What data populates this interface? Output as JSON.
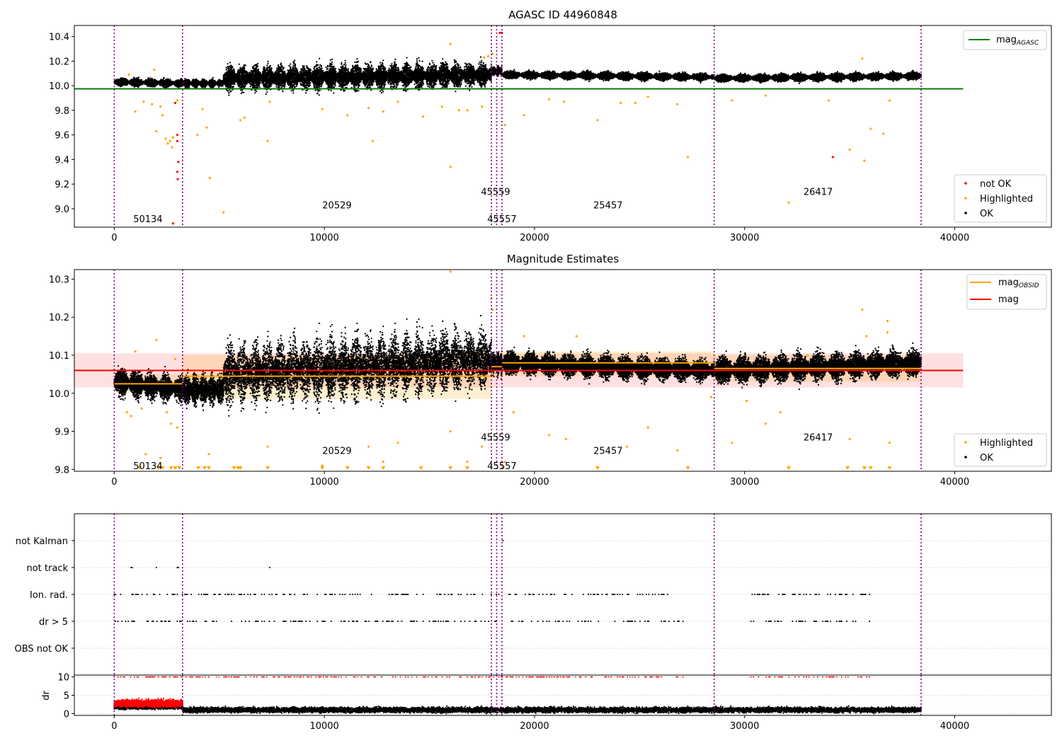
{
  "colors": {
    "ok": "#000000",
    "highlighted": "#ffa500",
    "not_ok": "#ff0000",
    "mag_agasc": "#008000",
    "mag_obsid": "#ffa500",
    "mag": "#ff0000",
    "obsid_line": "#800080"
  },
  "chart_data": [
    {
      "type": "scatter",
      "title": "AGASC ID 44960848",
      "xlim": [
        -1900,
        44600
      ],
      "ylim": [
        8.85,
        10.49
      ],
      "xticks": [
        0,
        10000,
        20000,
        30000,
        40000
      ],
      "xtick_labels": [
        "0",
        "10000",
        "20000",
        "30000",
        "40000"
      ],
      "yticks": [
        9.0,
        9.2,
        9.4,
        9.6,
        9.8,
        10.0,
        10.2,
        10.4
      ],
      "ytick_labels": [
        "9.0",
        "9.2",
        "9.4",
        "9.6",
        "9.8",
        "10.0",
        "10.2",
        "10.4"
      ],
      "obsid_boundaries": [
        0,
        3250,
        17950,
        18200,
        18450,
        28550,
        38400
      ],
      "obsid_labels": [
        {
          "text": "50134",
          "x": 1600,
          "y": 8.92
        },
        {
          "text": "20529",
          "x": 10600,
          "y": 9.03
        },
        {
          "text": "45559",
          "x": 18150,
          "y": 9.14
        },
        {
          "text": "45557",
          "x": 18450,
          "y": 8.92
        },
        {
          "text": "25457",
          "x": 23500,
          "y": 9.03
        },
        {
          "text": "26417",
          "x": 33500,
          "y": 9.14
        }
      ],
      "lines": [
        {
          "name": "mag_AGASC",
          "name_main": "mag",
          "name_sub": "AGASC",
          "y": 9.975,
          "x": [
            -1900,
            40400
          ]
        }
      ],
      "legend_lines_position": "upper right",
      "legend_points_position": "lower right",
      "legend_points": [
        {
          "name": "not OK",
          "color_key": "not_ok"
        },
        {
          "name": "Highlighted",
          "color_key": "highlighted"
        },
        {
          "name": "OK",
          "color_key": "ok"
        }
      ],
      "segments": [
        {
          "x": [
            0,
            3250
          ],
          "base": 10.03,
          "amp": 0.03,
          "trend": -0.01,
          "period": 700
        },
        {
          "x": [
            3250,
            5200
          ],
          "base": 10.02,
          "amp": 0.03,
          "trend": 0.0,
          "period": 400
        },
        {
          "x": [
            5200,
            17950
          ],
          "base": 10.06,
          "amp": 0.1,
          "trend": 0.03,
          "period": 600
        },
        {
          "x": [
            17950,
            18450
          ],
          "base": 10.12,
          "amp": 0.04,
          "trend": 0.0,
          "period": 200
        },
        {
          "x": [
            18450,
            28550
          ],
          "base": 10.09,
          "amp": 0.03,
          "trend": -0.02,
          "period": 900
        },
        {
          "x": [
            28550,
            38400
          ],
          "base": 10.06,
          "amp": 0.03,
          "trend": 0.02,
          "period": 900
        }
      ],
      "highlighted_points": [
        [
          1000,
          9.79
        ],
        [
          1400,
          9.87
        ],
        [
          1800,
          9.85
        ],
        [
          2000,
          9.63
        ],
        [
          2200,
          9.83
        ],
        [
          2300,
          9.76
        ],
        [
          2450,
          9.57
        ],
        [
          2550,
          9.53
        ],
        [
          2650,
          9.55
        ],
        [
          2750,
          9.5
        ],
        [
          2800,
          9.58
        ],
        [
          3000,
          9.88
        ],
        [
          3950,
          9.6
        ],
        [
          4200,
          9.81
        ],
        [
          4400,
          9.66
        ],
        [
          4550,
          9.25
        ],
        [
          5200,
          8.97
        ],
        [
          6000,
          9.72
        ],
        [
          6200,
          9.74
        ],
        [
          7300,
          9.55
        ],
        [
          7400,
          9.87
        ],
        [
          9900,
          9.81
        ],
        [
          11100,
          9.76
        ],
        [
          12100,
          9.82
        ],
        [
          12300,
          9.55
        ],
        [
          12800,
          9.79
        ],
        [
          13500,
          9.87
        ],
        [
          14700,
          9.75
        ],
        [
          15600,
          9.83
        ],
        [
          16000,
          9.34
        ],
        [
          16000,
          10.34
        ],
        [
          16400,
          9.8
        ],
        [
          16800,
          9.8
        ],
        [
          17500,
          9.83
        ],
        [
          18600,
          9.68
        ],
        [
          19500,
          9.76
        ],
        [
          20700,
          9.89
        ],
        [
          21400,
          9.87
        ],
        [
          23000,
          9.72
        ],
        [
          24100,
          9.86
        ],
        [
          24800,
          9.86
        ],
        [
          25400,
          9.91
        ],
        [
          26800,
          9.85
        ],
        [
          27300,
          9.42
        ],
        [
          29400,
          9.88
        ],
        [
          31000,
          9.92
        ],
        [
          32100,
          9.05
        ],
        [
          34000,
          9.88
        ],
        [
          35000,
          9.48
        ],
        [
          35700,
          9.39
        ],
        [
          35600,
          10.22
        ],
        [
          36000,
          9.65
        ],
        [
          36600,
          9.61
        ],
        [
          36900,
          9.88
        ],
        [
          17800,
          10.24
        ],
        [
          17600,
          10.23
        ],
        [
          18000,
          10.26
        ],
        [
          1900,
          10.13
        ],
        [
          700,
          10.09
        ]
      ],
      "not_ok_points": [
        [
          2900,
          9.86
        ],
        [
          3000,
          9.6
        ],
        [
          3000,
          9.55
        ],
        [
          3050,
          9.38
        ],
        [
          3000,
          9.3
        ],
        [
          3020,
          9.24
        ],
        [
          2800,
          8.88
        ],
        [
          34200,
          9.42
        ],
        [
          18450,
          10.43
        ],
        [
          18350,
          10.43
        ]
      ]
    },
    {
      "type": "scatter",
      "title": "Magnitude Estimates",
      "xlim": [
        -1900,
        44600
      ],
      "ylim": [
        9.795,
        10.325
      ],
      "xticks": [
        0,
        10000,
        20000,
        30000,
        40000
      ],
      "xtick_labels": [
        "0",
        "10000",
        "20000",
        "30000",
        "40000"
      ],
      "yticks": [
        9.8,
        9.9,
        10.0,
        10.1,
        10.2,
        10.3
      ],
      "ytick_labels": [
        "9.8",
        "9.9",
        "10.0",
        "10.1",
        "10.2",
        "10.3"
      ],
      "obsid_boundaries": [
        0,
        3250,
        17950,
        18200,
        18450,
        28550,
        38400
      ],
      "obsid_labels": [
        {
          "text": "50134",
          "x": 1600,
          "y": 9.81
        },
        {
          "text": "20529",
          "x": 10600,
          "y": 9.85
        },
        {
          "text": "45559",
          "x": 18150,
          "y": 9.885
        },
        {
          "text": "45557",
          "x": 18450,
          "y": 9.81
        },
        {
          "text": "25457",
          "x": 23500,
          "y": 9.85
        },
        {
          "text": "26417",
          "x": 33500,
          "y": 9.885
        }
      ],
      "mag": {
        "name": "mag",
        "y": 10.06,
        "band": [
          10.015,
          10.105
        ],
        "x": [
          -1900,
          40400
        ]
      },
      "mag_obsid": {
        "name": "mag_OBSID",
        "name_main": "mag",
        "name_sub": "OBSID",
        "segments": [
          {
            "x": [
              0,
              3250
            ],
            "y": 10.025,
            "band": [
              10.0,
              10.05
            ]
          },
          {
            "x": [
              3250,
              17950
            ],
            "y": 10.045,
            "band": [
              9.985,
              10.1
            ]
          },
          {
            "x": [
              17950,
              18450
            ],
            "y": 10.07,
            "band": [
              10.04,
              10.1
            ]
          },
          {
            "x": [
              18450,
              28550
            ],
            "y": 10.08,
            "band": [
              10.045,
              10.11
            ]
          },
          {
            "x": [
              28550,
              38400
            ],
            "y": 10.065,
            "band": [
              10.03,
              10.1
            ]
          }
        ]
      },
      "legend_lines_position": "upper right",
      "legend_points_position": "lower right",
      "legend_points": [
        {
          "name": "Highlighted",
          "color_key": "highlighted"
        },
        {
          "name": "OK",
          "color_key": "ok"
        }
      ],
      "segments": [
        {
          "x": [
            0,
            3250
          ],
          "base": 10.03,
          "amp": 0.035,
          "trend": -0.02,
          "period": 700
        },
        {
          "x": [
            3250,
            5200
          ],
          "base": 10.01,
          "amp": 0.04,
          "trend": 0.0,
          "period": 400
        },
        {
          "x": [
            5200,
            17950
          ],
          "base": 10.05,
          "amp": 0.08,
          "trend": 0.04,
          "period": 600
        },
        {
          "x": [
            17950,
            18450
          ],
          "base": 10.08,
          "amp": 0.03,
          "trend": 0.0,
          "period": 200
        },
        {
          "x": [
            18450,
            28550
          ],
          "base": 10.08,
          "amp": 0.03,
          "trend": -0.02,
          "period": 900
        },
        {
          "x": [
            28550,
            38400
          ],
          "base": 10.06,
          "amp": 0.035,
          "trend": 0.02,
          "period": 900
        }
      ],
      "highlighted_points": [
        [
          600,
          9.95
        ],
        [
          800,
          9.94
        ],
        [
          1000,
          10.11
        ],
        [
          1300,
          9.96
        ],
        [
          1500,
          9.84
        ],
        [
          2000,
          10.14
        ],
        [
          2200,
          9.83
        ],
        [
          2500,
          9.95
        ],
        [
          2700,
          9.92
        ],
        [
          2900,
          10.09
        ],
        [
          3000,
          9.91
        ],
        [
          4500,
          9.84
        ],
        [
          7300,
          9.86
        ],
        [
          9900,
          9.81
        ],
        [
          12100,
          9.86
        ],
        [
          12800,
          9.82
        ],
        [
          13500,
          9.87
        ],
        [
          16000,
          9.9
        ],
        [
          16000,
          10.32
        ],
        [
          16800,
          9.82
        ],
        [
          17500,
          9.86
        ],
        [
          17950,
          10.25
        ],
        [
          18000,
          10.22
        ],
        [
          18600,
          9.82
        ],
        [
          19000,
          9.95
        ],
        [
          19500,
          10.15
        ],
        [
          20700,
          9.89
        ],
        [
          21500,
          9.88
        ],
        [
          22000,
          10.15
        ],
        [
          24400,
          9.86
        ],
        [
          25400,
          9.91
        ],
        [
          26800,
          9.85
        ],
        [
          28400,
          9.99
        ],
        [
          29400,
          9.87
        ],
        [
          30100,
          9.98
        ],
        [
          31000,
          9.92
        ],
        [
          31700,
          9.95
        ],
        [
          33000,
          10.1
        ],
        [
          35000,
          9.88
        ],
        [
          35600,
          10.22
        ],
        [
          35800,
          10.15
        ],
        [
          36800,
          10.19
        ],
        [
          36800,
          10.16
        ],
        [
          36900,
          9.87
        ]
      ],
      "below_markers_x": [
        1200,
        2100,
        2300,
        2700,
        2900,
        3100,
        4000,
        4300,
        4500,
        5700,
        5900,
        6000,
        7300,
        9900,
        11100,
        12100,
        12800,
        14600,
        16000,
        16800,
        18500,
        23000,
        27300,
        32100,
        34900,
        35700,
        36000,
        36900
      ]
    },
    {
      "type": "scatter",
      "title": "",
      "xlim": [
        -1900,
        44600
      ],
      "categories": [
        "OBS not OK",
        "dr > 5",
        "Ion. rad.",
        "not track",
        "not Kalman"
      ],
      "obsid_boundaries": [
        0,
        3250,
        17950,
        18200,
        18450,
        28550,
        38400
      ],
      "flag_points": {
        "not Kalman": [
          18500
        ],
        "not track": [
          800,
          850,
          2000,
          3000,
          3050,
          7400
        ],
        "Ion. rad.": {
          "ranges": [
            [
              0,
              27100
            ],
            [
              30300,
              36000
            ]
          ],
          "density": 0.35
        },
        "dr > 5": {
          "ranges": [
            [
              0,
              27100
            ],
            [
              30300,
              36000
            ]
          ],
          "density": 0.35
        },
        "OBS not OK": []
      }
    },
    {
      "type": "scatter",
      "title": "",
      "ylabel": "dr",
      "xlim": [
        -1900,
        44600
      ],
      "ylim": [
        -0.5,
        10.5
      ],
      "yticks": [
        0,
        5,
        10
      ],
      "ytick_labels": [
        "0",
        "5",
        "10"
      ],
      "xticks": [
        0,
        10000,
        20000,
        30000,
        40000
      ],
      "xtick_labels": [
        "0",
        "10000",
        "20000",
        "30000",
        "40000"
      ],
      "obsid_boundaries": [
        0,
        3250,
        17950,
        18200,
        18450,
        28550,
        38400
      ],
      "ok_band": {
        "ranges": [
          [
            0,
            3250,
            2.0
          ],
          [
            3250,
            38400,
            1.0
          ]
        ],
        "spread": 1.2
      },
      "not_ok_band": {
        "ranges": [
          [
            0,
            3250,
            2.8
          ]
        ],
        "spread": 1.6
      },
      "capped_value": 10,
      "capped_ranges": [
        [
          0,
          27100
        ],
        [
          30300,
          36000
        ]
      ]
    }
  ]
}
